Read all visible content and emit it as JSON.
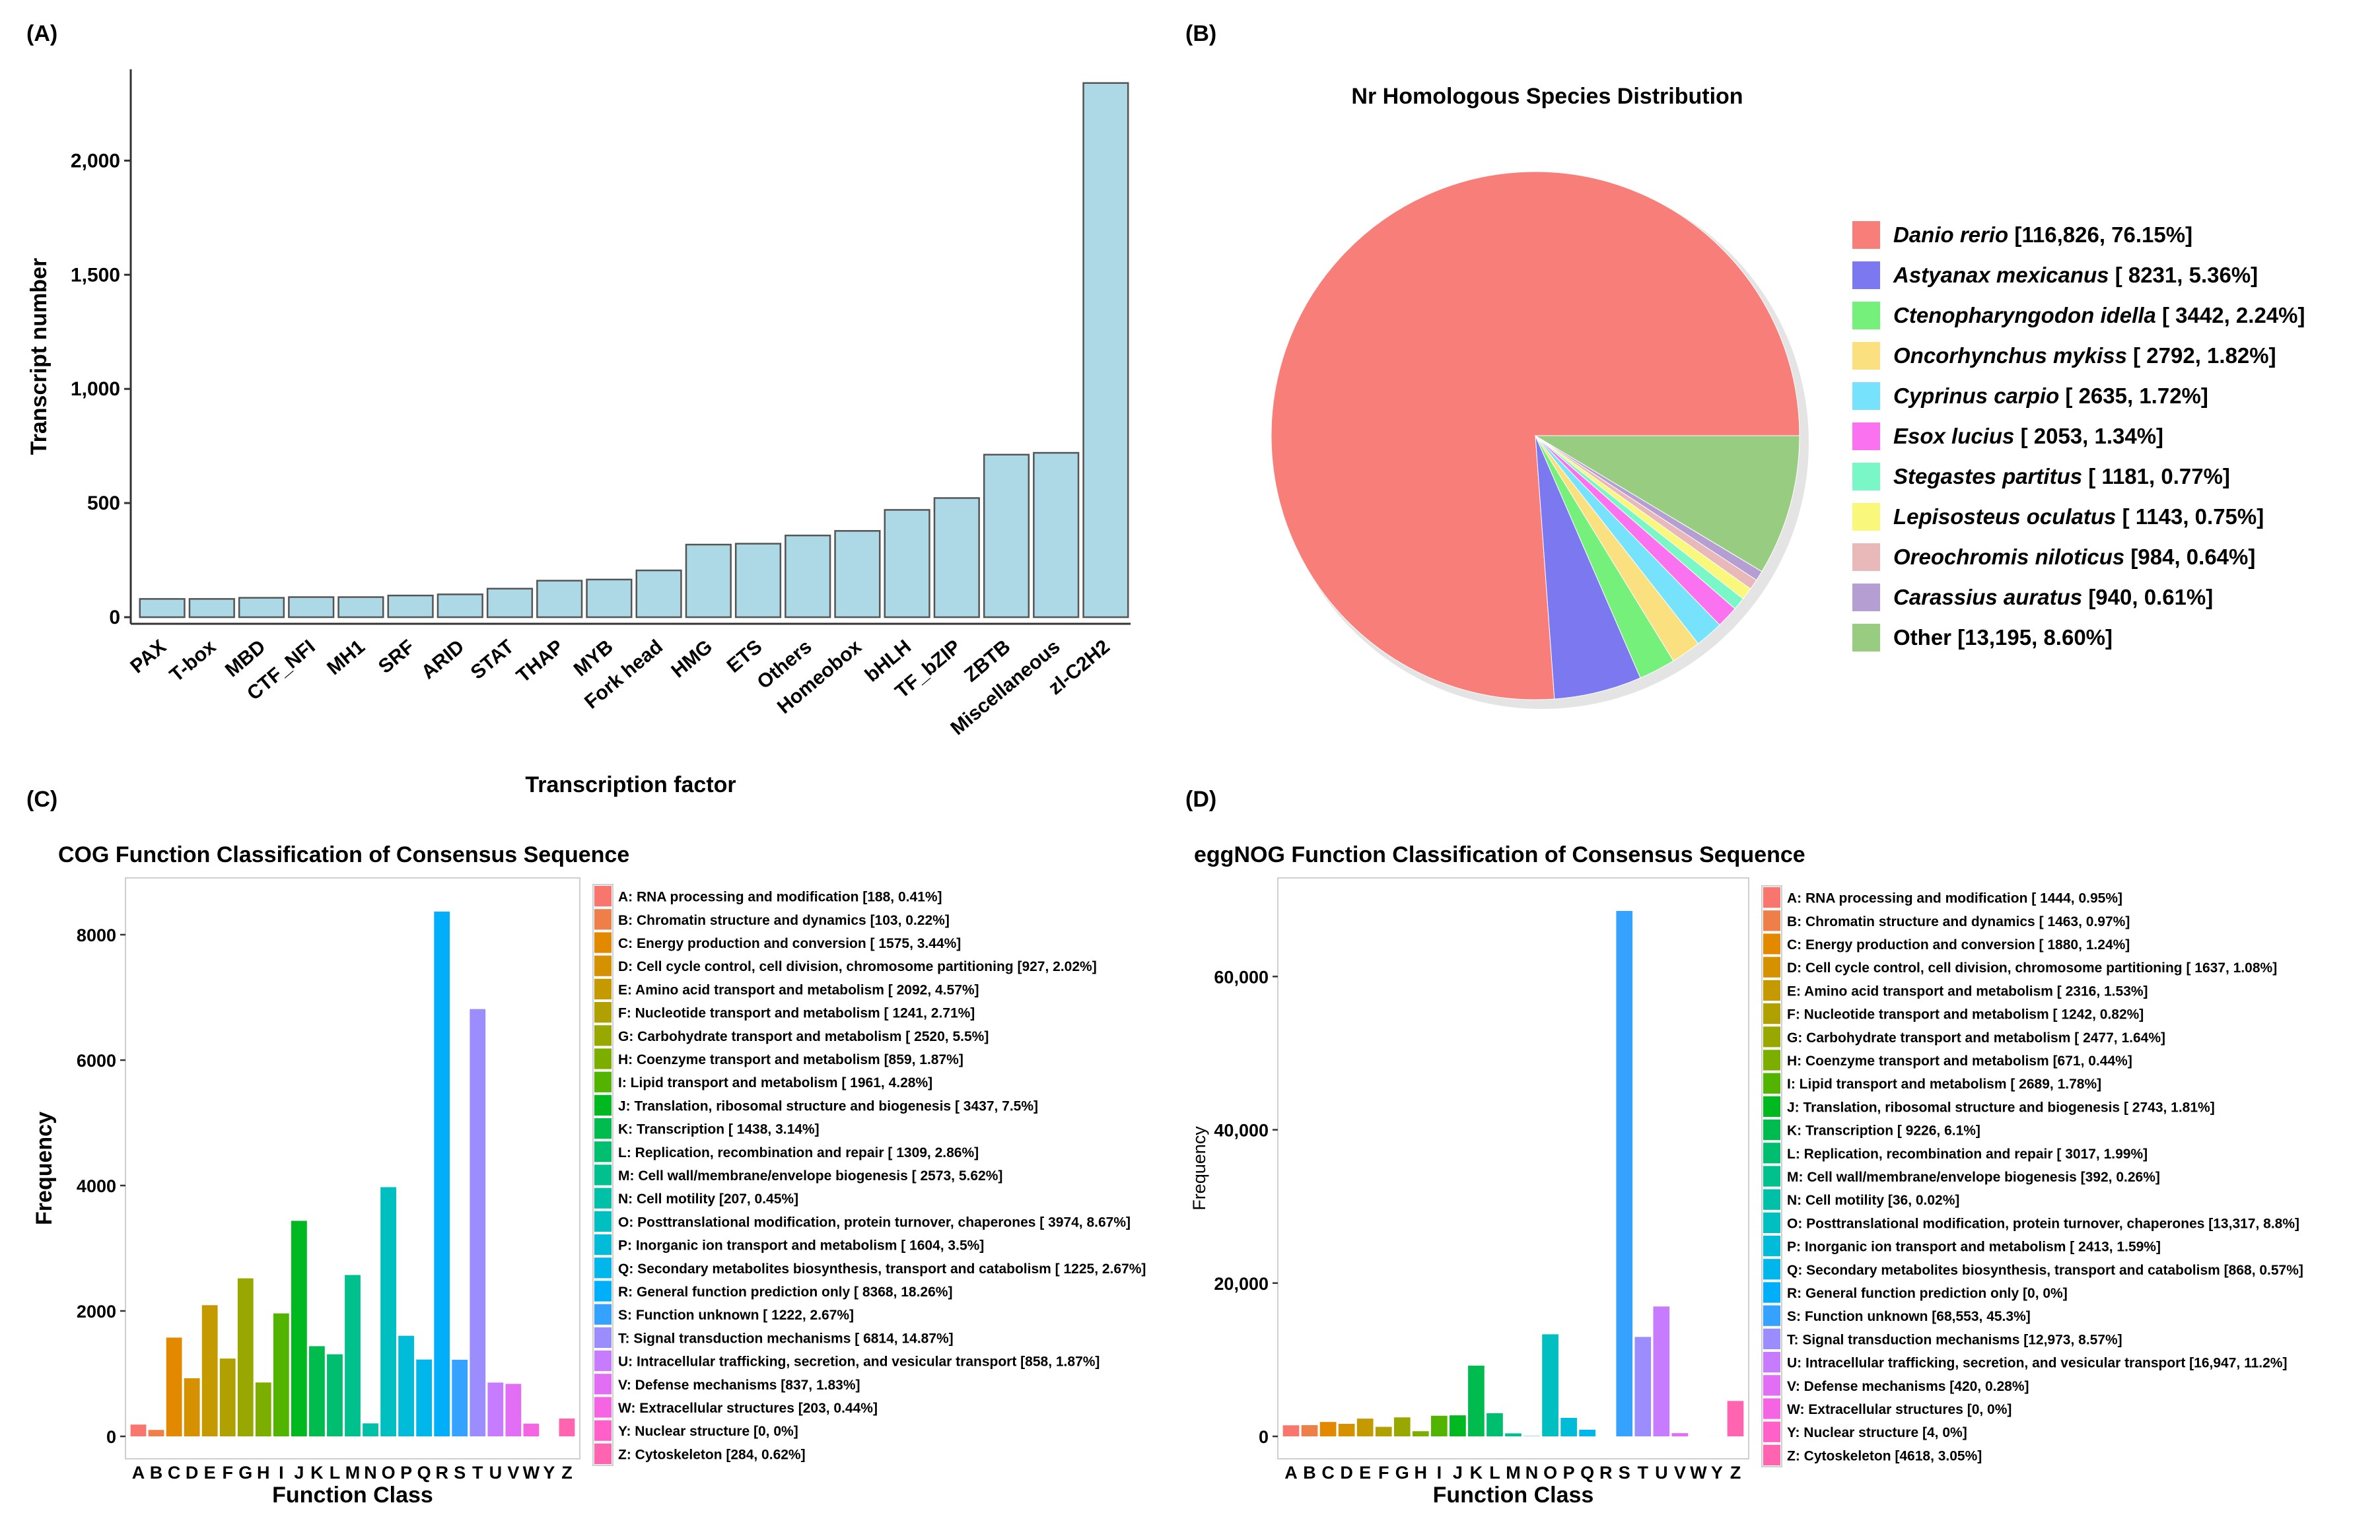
{
  "panel_labels": {
    "a": "(A)",
    "b": "(B)",
    "c": "(C)",
    "d": "(D)"
  },
  "chart_data": [
    {
      "id": "A",
      "type": "bar",
      "title": "",
      "xlabel": "Transcription factor",
      "ylabel": "Transcript number",
      "ylim": [
        0,
        2400
      ],
      "yticks": [
        0,
        500,
        1000,
        1500,
        2000
      ],
      "categories": [
        "PAX",
        "T-box",
        "MBD",
        "CTF_NFI",
        "MH1",
        "SRF",
        "ARID",
        "STAT",
        "THAP",
        "MYB",
        "Fork head",
        "HMG",
        "ETS",
        "Others",
        "Homeobox",
        "bHLH",
        "TF_bZIP",
        "ZBTB",
        "Miscellaneous",
        "zl-C2H2"
      ],
      "values": [
        80,
        80,
        85,
        88,
        88,
        95,
        100,
        125,
        160,
        165,
        205,
        318,
        322,
        358,
        378,
        470,
        522,
        712,
        720,
        2340
      ],
      "bar_color": "#add8e6"
    },
    {
      "id": "B",
      "type": "pie",
      "title": "Nr Homologous Species Distribution",
      "slices": [
        {
          "name": "Danio rerio",
          "label": "[116,826, 76.15%]",
          "percent": 76.15,
          "color": "#f87e7a",
          "italic": true
        },
        {
          "name": "Astyanax mexicanus",
          "label": "[ 8231, 5.36%]",
          "percent": 5.36,
          "color": "#7b78f0",
          "italic": true
        },
        {
          "name": "Ctenopharyngodon idella",
          "label": "[ 3442, 2.24%]",
          "percent": 2.24,
          "color": "#74f07b",
          "italic": true
        },
        {
          "name": "Oncorhynchus mykiss",
          "label": "[ 2792, 1.82%]",
          "percent": 1.82,
          "color": "#fbe07f",
          "italic": true
        },
        {
          "name": "Cyprinus carpio",
          "label": "[ 2635, 1.72%]",
          "percent": 1.72,
          "color": "#76e2fb",
          "italic": true
        },
        {
          "name": "Esox lucius",
          "label": "[ 2053, 1.34%]",
          "percent": 1.34,
          "color": "#fb72f0",
          "italic": true
        },
        {
          "name": "Stegastes partitus",
          "label": "[ 1181, 0.77%]",
          "percent": 0.77,
          "color": "#7af7c6",
          "italic": true
        },
        {
          "name": "Lepisosteus oculatus",
          "label": "[ 1143, 0.75%]",
          "percent": 0.75,
          "color": "#f9f87a",
          "italic": true
        },
        {
          "name": "Oreochromis niloticus",
          "label": "[984, 0.64%]",
          "percent": 0.64,
          "color": "#e9b9b9",
          "italic": true
        },
        {
          "name": "Carassius auratus",
          "label": "[940, 0.61%]",
          "percent": 0.61,
          "color": "#b49ed2",
          "italic": true
        },
        {
          "name": "Other",
          "label": "[13,195, 8.60%]",
          "percent": 8.6,
          "color": "#98cc80",
          "italic": false
        }
      ]
    },
    {
      "id": "C",
      "type": "bar",
      "title": "COG Function Classification of Consensus Sequence",
      "xlabel": "Function Class",
      "ylabel": "Frequency",
      "ylim": [
        0,
        8800
      ],
      "yticks": [
        0,
        2000,
        4000,
        6000,
        8000
      ],
      "ytick_labels": [
        "0",
        "2000",
        "4000",
        "6000",
        "8000"
      ],
      "categories": [
        "A",
        "B",
        "C",
        "D",
        "E",
        "F",
        "G",
        "H",
        "I",
        "J",
        "K",
        "L",
        "M",
        "N",
        "O",
        "P",
        "Q",
        "R",
        "S",
        "T",
        "U",
        "V",
        "W",
        "Y",
        "Z"
      ],
      "values": [
        188,
        103,
        1575,
        927,
        2092,
        1241,
        2520,
        859,
        1961,
        3437,
        1438,
        1309,
        2573,
        207,
        3974,
        1604,
        1225,
        8368,
        1222,
        6814,
        858,
        837,
        203,
        0,
        284
      ],
      "legend": [
        "A: RNA processing and modification [188, 0.41%]",
        "B: Chromatin structure and dynamics [103, 0.22%]",
        "C: Energy production and conversion [ 1575, 3.44%]",
        "D: Cell cycle control, cell division, chromosome partitioning [927, 2.02%]",
        "E: Amino acid transport and metabolism [ 2092, 4.57%]",
        "F: Nucleotide transport and metabolism [ 1241, 2.71%]",
        "G: Carbohydrate transport and metabolism [ 2520, 5.5%]",
        "H: Coenzyme transport and metabolism [859, 1.87%]",
        "I: Lipid transport and metabolism [ 1961, 4.28%]",
        "J: Translation, ribosomal structure and biogenesis [ 3437, 7.5%]",
        "K: Transcription [ 1438, 3.14%]",
        "L: Replication, recombination and repair [ 1309, 2.86%]",
        "M: Cell wall/membrane/envelope biogenesis [ 2573, 5.62%]",
        "N: Cell motility [207, 0.45%]",
        "O: Posttranslational modification, protein turnover, chaperones [ 3974, 8.67%]",
        "P: Inorganic ion transport and metabolism [ 1604, 3.5%]",
        "Q: Secondary metabolites biosynthesis, transport and catabolism [ 1225, 2.67%]",
        "R: General function prediction only [ 8368, 18.26%]",
        "S: Function unknown [ 1222, 2.67%]",
        "T: Signal transduction mechanisms [ 6814, 14.87%]",
        "U: Intracellular trafficking, secretion, and vesicular transport [858, 1.87%]",
        "V: Defense mechanisms [837, 1.83%]",
        "W: Extracellular structures [203, 0.44%]",
        "Y: Nuclear structure [0, 0%]",
        "Z: Cytoskeleton [284, 0.62%]"
      ]
    },
    {
      "id": "D",
      "type": "bar",
      "title": "eggNOG Function Classification of Consensus Sequence",
      "xlabel": "Function Class",
      "ylabel": "Frequency",
      "ylim": [
        0,
        72000
      ],
      "yticks": [
        0,
        20000,
        40000,
        60000
      ],
      "ytick_labels": [
        "0",
        "20,000",
        "40,000",
        "60,000"
      ],
      "categories": [
        "A",
        "B",
        "C",
        "D",
        "E",
        "F",
        "G",
        "H",
        "I",
        "J",
        "K",
        "L",
        "M",
        "N",
        "O",
        "P",
        "Q",
        "R",
        "S",
        "T",
        "U",
        "V",
        "W",
        "Y",
        "Z"
      ],
      "values": [
        1444,
        1463,
        1880,
        1637,
        2316,
        1242,
        2477,
        671,
        2689,
        2743,
        9226,
        3017,
        392,
        36,
        13317,
        2413,
        868,
        0,
        68553,
        12973,
        16947,
        420,
        0,
        4,
        4618
      ],
      "legend": [
        "A: RNA processing and modification [ 1444, 0.95%]",
        "B: Chromatin structure and dynamics [ 1463, 0.97%]",
        "C: Energy production and conversion [ 1880, 1.24%]",
        "D: Cell cycle control, cell division, chromosome partitioning [ 1637, 1.08%]",
        "E: Amino acid transport and metabolism [ 2316, 1.53%]",
        "F: Nucleotide transport and metabolism [ 1242, 0.82%]",
        "G: Carbohydrate transport and metabolism [ 2477, 1.64%]",
        "H: Coenzyme transport and metabolism [671, 0.44%]",
        "I: Lipid transport and metabolism [ 2689, 1.78%]",
        "J: Translation, ribosomal structure and biogenesis [ 2743, 1.81%]",
        "K: Transcription [ 9226, 6.1%]",
        "L: Replication, recombination and repair [ 3017, 1.99%]",
        "M: Cell wall/membrane/envelope biogenesis [392, 0.26%]",
        "N: Cell motility [36, 0.02%]",
        "O: Posttranslational modification, protein turnover, chaperones [13,317, 8.8%]",
        "P: Inorganic ion transport and metabolism [ 2413, 1.59%]",
        "Q: Secondary metabolites biosynthesis, transport and catabolism [868, 0.57%]",
        "R: General function prediction only [0, 0%]",
        "S: Function unknown [68,553, 45.3%]",
        "T: Signal transduction mechanisms [12,973, 8.57%]",
        "U: Intracellular trafficking, secretion, and vesicular transport [16,947, 11.2%]",
        "V: Defense mechanisms [420, 0.28%]",
        "W: Extracellular structures [0, 0%]",
        "Y: Nuclear structure [4, 0%]",
        "Z: Cytoskeleton [4618, 3.05%]"
      ]
    }
  ],
  "function_class_colors": [
    "#f8766d",
    "#ef7f49",
    "#e38900",
    "#d69100",
    "#c49a00",
    "#b0a100",
    "#99a800",
    "#7cae00",
    "#53b400",
    "#00b81f",
    "#00bb4e",
    "#00be70",
    "#00c08d",
    "#00c0a8",
    "#00bfc0",
    "#00bcd8",
    "#00b6eb",
    "#00aefa",
    "#35a2ff",
    "#9c8dff",
    "#c77cff",
    "#e36ef6",
    "#f564e3",
    "#ff61c9",
    "#ff64b0"
  ]
}
